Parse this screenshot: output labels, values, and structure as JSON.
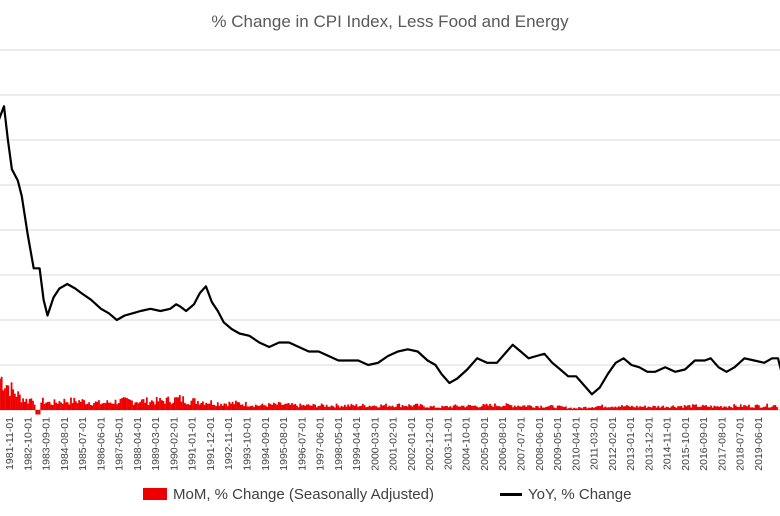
{
  "chart_data": {
    "type": "bar+line",
    "title": "% Change in CPI Index, Less Food and Energy",
    "xlabel": "",
    "ylabel": "",
    "ylim": [
      0,
      16
    ],
    "grid": true,
    "legend_position": "bottom",
    "x_ticks": [
      "1981-11-01",
      "1982-10-01",
      "1983-09-01",
      "1984-08-01",
      "1985-07-01",
      "1986-06-01",
      "1987-05-01",
      "1988-04-01",
      "1989-03-01",
      "1990-02-01",
      "1991-01-01",
      "1991-12-01",
      "1992-11-01",
      "1993-10-01",
      "1994-09-01",
      "1995-08-01",
      "1996-07-01",
      "1997-06-01",
      "1998-05-01",
      "1999-04-01",
      "2000-03-01",
      "2001-02-01",
      "2002-01-01",
      "2002-12-01",
      "2003-11-01",
      "2004-10-01",
      "2005-09-01",
      "2006-08-01",
      "2007-07-01",
      "2008-06-01",
      "2009-05-01",
      "2010-04-01",
      "2011-03-01",
      "2012-02-01",
      "2013-01-01",
      "2013-12-01",
      "2014-11-01",
      "2015-10-01",
      "2016-09-01",
      "2017-08-01",
      "2018-07-01",
      "2019-06-01"
    ],
    "series": [
      {
        "name": "MoM, % Change (Seasonally Adjusted)",
        "kind": "bar",
        "color": "#ee0000",
        "points": [
          [
            1981.0,
            1.4
          ],
          [
            1981.5,
            0.9
          ],
          [
            1981.9,
            0.6
          ],
          [
            1982.3,
            0.4
          ],
          [
            1982.6,
            0.6
          ],
          [
            1982.8,
            -0.2
          ],
          [
            1983.0,
            0.4
          ],
          [
            1983.5,
            0.3
          ],
          [
            1984.0,
            0.4
          ],
          [
            1985.0,
            0.4
          ],
          [
            1986.0,
            0.3
          ],
          [
            1987.0,
            0.4
          ],
          [
            1988.0,
            0.4
          ],
          [
            1989.0,
            0.4
          ],
          [
            1990.0,
            0.5
          ],
          [
            1990.5,
            0.4
          ],
          [
            1991.0,
            0.4
          ],
          [
            1992.0,
            0.3
          ],
          [
            1993.0,
            0.3
          ],
          [
            1994.0,
            0.2
          ],
          [
            1995.0,
            0.25
          ],
          [
            1996.0,
            0.2
          ],
          [
            1997.0,
            0.2
          ],
          [
            1998.0,
            0.2
          ],
          [
            1999.0,
            0.2
          ],
          [
            2000.0,
            0.2
          ],
          [
            2001.0,
            0.22
          ],
          [
            2002.0,
            0.2
          ],
          [
            2003.0,
            0.12
          ],
          [
            2004.0,
            0.18
          ],
          [
            2005.0,
            0.18
          ],
          [
            2006.0,
            0.22
          ],
          [
            2007.0,
            0.2
          ],
          [
            2008.0,
            0.18
          ],
          [
            2009.0,
            0.15
          ],
          [
            2010.0,
            0.08
          ],
          [
            2011.0,
            0.17
          ],
          [
            2012.0,
            0.18
          ],
          [
            2013.0,
            0.15
          ],
          [
            2014.0,
            0.15
          ],
          [
            2015.0,
            0.17
          ],
          [
            2016.0,
            0.18
          ],
          [
            2017.0,
            0.15
          ],
          [
            2018.0,
            0.18
          ],
          [
            2019.0,
            0.18
          ],
          [
            2019.9,
            0.2
          ]
        ]
      },
      {
        "name": "YoY, % Change",
        "kind": "line",
        "color": "#000000",
        "points": [
          [
            1980.8,
            12.8
          ],
          [
            1981.1,
            13.5
          ],
          [
            1981.3,
            12.0
          ],
          [
            1981.5,
            10.7
          ],
          [
            1981.8,
            10.2
          ],
          [
            1982.0,
            9.5
          ],
          [
            1982.3,
            7.8
          ],
          [
            1982.6,
            6.3
          ],
          [
            1982.9,
            6.3
          ],
          [
            1983.1,
            4.9
          ],
          [
            1983.3,
            4.2
          ],
          [
            1983.6,
            5.0
          ],
          [
            1983.9,
            5.4
          ],
          [
            1984.3,
            5.6
          ],
          [
            1984.7,
            5.4
          ],
          [
            1985.0,
            5.2
          ],
          [
            1985.5,
            4.9
          ],
          [
            1986.0,
            4.5
          ],
          [
            1986.4,
            4.3
          ],
          [
            1986.8,
            4.0
          ],
          [
            1987.2,
            4.2
          ],
          [
            1987.6,
            4.3
          ],
          [
            1988.0,
            4.4
          ],
          [
            1988.5,
            4.5
          ],
          [
            1989.0,
            4.4
          ],
          [
            1989.5,
            4.5
          ],
          [
            1989.8,
            4.7
          ],
          [
            1990.0,
            4.6
          ],
          [
            1990.3,
            4.4
          ],
          [
            1990.7,
            4.7
          ],
          [
            1991.0,
            5.2
          ],
          [
            1991.3,
            5.5
          ],
          [
            1991.6,
            4.8
          ],
          [
            1991.9,
            4.4
          ],
          [
            1992.2,
            3.9
          ],
          [
            1992.6,
            3.6
          ],
          [
            1993.0,
            3.4
          ],
          [
            1993.5,
            3.3
          ],
          [
            1994.0,
            3.0
          ],
          [
            1994.5,
            2.8
          ],
          [
            1995.0,
            3.0
          ],
          [
            1995.5,
            3.0
          ],
          [
            1996.0,
            2.8
          ],
          [
            1996.5,
            2.6
          ],
          [
            1997.0,
            2.6
          ],
          [
            1997.5,
            2.4
          ],
          [
            1998.0,
            2.2
          ],
          [
            1998.5,
            2.2
          ],
          [
            1999.0,
            2.2
          ],
          [
            1999.5,
            2.0
          ],
          [
            2000.0,
            2.1
          ],
          [
            2000.5,
            2.4
          ],
          [
            2001.0,
            2.6
          ],
          [
            2001.5,
            2.7
          ],
          [
            2002.0,
            2.6
          ],
          [
            2002.5,
            2.2
          ],
          [
            2002.9,
            2.0
          ],
          [
            2003.2,
            1.6
          ],
          [
            2003.6,
            1.2
          ],
          [
            2004.0,
            1.4
          ],
          [
            2004.5,
            1.8
          ],
          [
            2005.0,
            2.3
          ],
          [
            2005.5,
            2.1
          ],
          [
            2006.0,
            2.1
          ],
          [
            2006.5,
            2.6
          ],
          [
            2006.8,
            2.9
          ],
          [
            2007.2,
            2.6
          ],
          [
            2007.6,
            2.3
          ],
          [
            2008.0,
            2.4
          ],
          [
            2008.4,
            2.5
          ],
          [
            2008.8,
            2.1
          ],
          [
            2009.2,
            1.8
          ],
          [
            2009.6,
            1.5
          ],
          [
            2010.0,
            1.5
          ],
          [
            2010.5,
            1.0
          ],
          [
            2010.8,
            0.7
          ],
          [
            2011.2,
            1.0
          ],
          [
            2011.6,
            1.6
          ],
          [
            2012.0,
            2.1
          ],
          [
            2012.4,
            2.3
          ],
          [
            2012.8,
            2.0
          ],
          [
            2013.2,
            1.9
          ],
          [
            2013.6,
            1.7
          ],
          [
            2014.0,
            1.7
          ],
          [
            2014.5,
            1.9
          ],
          [
            2015.0,
            1.7
          ],
          [
            2015.5,
            1.8
          ],
          [
            2016.0,
            2.2
          ],
          [
            2016.5,
            2.2
          ],
          [
            2016.8,
            2.3
          ],
          [
            2017.2,
            1.9
          ],
          [
            2017.6,
            1.7
          ],
          [
            2018.0,
            1.9
          ],
          [
            2018.5,
            2.3
          ],
          [
            2019.0,
            2.2
          ],
          [
            2019.5,
            2.1
          ],
          [
            2019.9,
            2.3
          ],
          [
            2020.2,
            2.3
          ],
          [
            2020.4,
            1.6
          ]
        ]
      }
    ]
  },
  "legend": {
    "bar_label": "MoM, % Change (Seasonally Adjusted)",
    "line_label": "YoY, % Change"
  }
}
